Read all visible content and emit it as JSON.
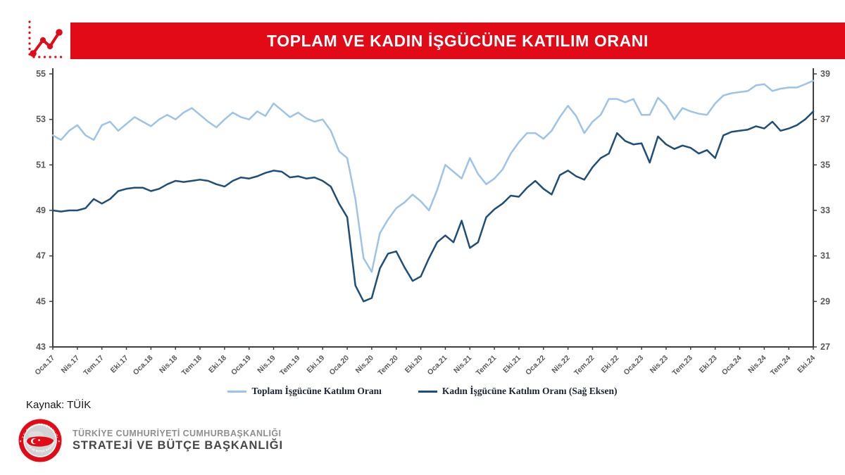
{
  "header": {
    "title": "TOPLAM VE KADIN İŞGÜCÜNE KATILIM ORANI",
    "banner_color": "#E30A17",
    "icon": "line-chart-icon"
  },
  "chart_data": {
    "type": "line",
    "title": "TOPLAM VE KADIN İŞGÜCÜNE KATILIM ORANI",
    "x_tick_labels": [
      "Oca.17",
      "Nis.17",
      "Tem.17",
      "Eki.17",
      "Oca.18",
      "Nis.18",
      "Tem.18",
      "Eki.18",
      "Oca.19",
      "Nis.19",
      "Tem.19",
      "Eki.19",
      "Oca.20",
      "Nis.20",
      "Tem.20",
      "Eki.20",
      "Oca.21",
      "Nis.21",
      "Tem.21",
      "Eki.21",
      "Oca.22",
      "Nis.22",
      "Tem.22",
      "Eki.22",
      "Oca.23",
      "Nis.23",
      "Tem.23",
      "Eki.23",
      "Oca.24",
      "Nis.24",
      "Tem.24",
      "Eki.24"
    ],
    "months_per_tick": 3,
    "n_points": 94,
    "grid": false,
    "legend_position": "bottom",
    "left_axis": {
      "min": 43,
      "max": 55,
      "ticks": [
        43,
        45,
        47,
        49,
        51,
        53,
        55
      ]
    },
    "right_axis": {
      "min": 27,
      "max": 39,
      "ticks": [
        27,
        29,
        31,
        33,
        35,
        37,
        39
      ]
    },
    "series": [
      {
        "name": "Toplam İşgücüne Katılım Oranı",
        "axis": "left",
        "color": "#9DC3E6",
        "values": [
          52.3,
          52.1,
          52.5,
          52.75,
          52.3,
          52.1,
          52.75,
          52.9,
          52.5,
          52.8,
          53.1,
          52.9,
          52.7,
          53.0,
          53.2,
          53.0,
          53.3,
          53.5,
          53.2,
          52.9,
          52.65,
          53.0,
          53.3,
          53.1,
          53.0,
          53.35,
          53.15,
          53.7,
          53.4,
          53.1,
          53.3,
          53.05,
          52.9,
          53.0,
          52.5,
          51.6,
          51.3,
          49.5,
          46.9,
          46.3,
          48.0,
          48.6,
          49.1,
          49.35,
          49.7,
          49.4,
          49.0,
          49.9,
          51.0,
          50.7,
          50.4,
          51.3,
          50.6,
          50.15,
          50.4,
          50.8,
          51.5,
          52.0,
          52.4,
          52.4,
          52.15,
          52.5,
          53.1,
          53.6,
          53.15,
          52.4,
          52.9,
          53.2,
          53.9,
          53.9,
          53.75,
          53.9,
          53.2,
          53.2,
          53.95,
          53.6,
          53.0,
          53.5,
          53.35,
          53.25,
          53.2,
          53.7,
          54.05,
          54.15,
          54.2,
          54.25,
          54.5,
          54.55,
          54.25,
          54.35,
          54.4,
          54.4,
          54.55,
          54.7
        ]
      },
      {
        "name": "Kadın İşgücüne Katılım Oranı (Sağ Eksen)",
        "axis": "right",
        "color": "#1F4E79",
        "values": [
          33.0,
          32.95,
          33.0,
          33.0,
          33.1,
          33.5,
          33.3,
          33.5,
          33.85,
          33.95,
          34.0,
          34.0,
          33.85,
          33.95,
          34.15,
          34.3,
          34.25,
          34.3,
          34.35,
          34.3,
          34.15,
          34.05,
          34.3,
          34.45,
          34.4,
          34.5,
          34.65,
          34.75,
          34.7,
          34.45,
          34.5,
          34.4,
          34.45,
          34.3,
          34.05,
          33.3,
          32.7,
          29.7,
          29.0,
          29.15,
          30.45,
          31.1,
          31.2,
          30.5,
          29.9,
          30.1,
          30.9,
          31.6,
          31.9,
          31.6,
          32.55,
          31.35,
          31.6,
          32.7,
          33.05,
          33.3,
          33.65,
          33.6,
          34.0,
          34.3,
          33.95,
          33.7,
          34.55,
          34.75,
          34.5,
          34.35,
          34.9,
          35.3,
          35.5,
          36.4,
          36.05,
          35.9,
          35.95,
          35.1,
          36.25,
          35.9,
          35.7,
          35.85,
          35.75,
          35.5,
          35.65,
          35.3,
          36.3,
          36.45,
          36.5,
          36.55,
          36.7,
          36.6,
          36.9,
          36.5,
          36.6,
          36.75,
          37.0,
          37.35
        ]
      }
    ]
  },
  "legend": {
    "items": [
      {
        "label": "Toplam İşgücüne Katılım Oranı",
        "color": "#9DC3E6"
      },
      {
        "label": "Kadın İşgücüne Katılım Oranı (Sağ Eksen)",
        "color": "#1F4E79"
      }
    ]
  },
  "source": {
    "text": "Kaynak: TÜİK"
  },
  "footer": {
    "org_line1": "TÜRKİYE CUMHURİYETİ CUMHURBAŞKANLIĞI",
    "org_line2": "STRATEJİ VE BÜTÇE BAŞKANLIĞI",
    "emblem_top_text": "T.C. CUMHURBAŞKANLIĞI",
    "emblem_bottom_text": "STRATEJİ VE BÜTÇE BAŞKANLIĞI"
  },
  "colors": {
    "accent_red": "#E30A17",
    "axis": "#3f3f3f",
    "tick_text": "#595959",
    "series_total": "#9DC3E6",
    "series_female": "#1F4E79"
  }
}
